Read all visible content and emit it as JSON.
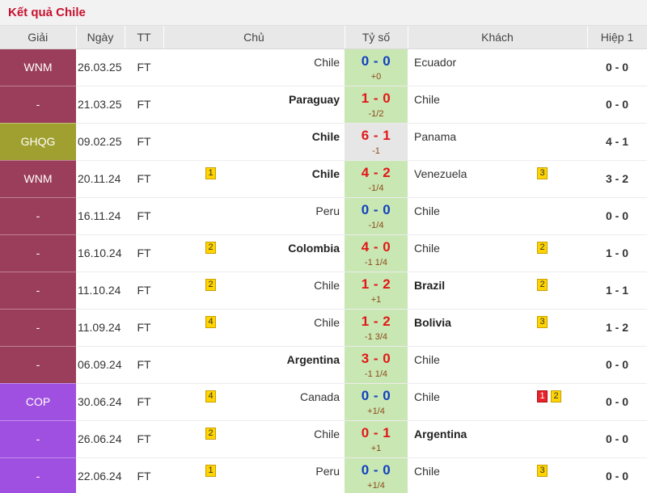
{
  "title": "Kết quả Chile",
  "headers": {
    "league": "Giải",
    "date": "Ngày",
    "status": "TT",
    "home": "Chủ",
    "score": "Tỷ số",
    "away": "Khách",
    "halftime": "Hiệp 1"
  },
  "colors": {
    "wnm": "#9b3e5c",
    "ghqg": "#a0a030",
    "cop": "#a050e0",
    "score_bg": "#c9e7b3",
    "yellow_card": "#ffd400",
    "red_card": "#e8242a"
  },
  "rows": [
    {
      "league": "WNM",
      "league_color": "#9b3e5c",
      "date": "26.03.25",
      "status": "FT",
      "home": "Chile",
      "home_bold": false,
      "home_card": "",
      "score": "0 - 0",
      "score_color": "blue",
      "score_bg": "green",
      "handicap": "+0",
      "away": "Ecuador",
      "away_bold": false,
      "away_card": "",
      "away_red_card": "",
      "halftime": "0 - 0"
    },
    {
      "league": "-",
      "league_color": "#9b3e5c",
      "date": "21.03.25",
      "status": "FT",
      "home": "Paraguay",
      "home_bold": true,
      "home_card": "",
      "score": "1 - 0",
      "score_color": "red",
      "score_bg": "green",
      "handicap": "-1/2",
      "away": "Chile",
      "away_bold": false,
      "away_card": "",
      "away_red_card": "",
      "halftime": "0 - 0"
    },
    {
      "league": "GHQG",
      "league_color": "#a0a030",
      "date": "09.02.25",
      "status": "FT",
      "home": "Chile",
      "home_bold": true,
      "home_card": "",
      "score": "6 - 1",
      "score_color": "red",
      "score_bg": "gray",
      "handicap": "-1",
      "away": "Panama",
      "away_bold": false,
      "away_card": "",
      "away_red_card": "",
      "halftime": "4 - 1"
    },
    {
      "league": "WNM",
      "league_color": "#9b3e5c",
      "date": "20.11.24",
      "status": "FT",
      "home": "Chile",
      "home_bold": true,
      "home_card": "1",
      "score": "4 - 2",
      "score_color": "red",
      "score_bg": "green",
      "handicap": "-1/4",
      "away": "Venezuela",
      "away_bold": false,
      "away_card": "3",
      "away_red_card": "",
      "halftime": "3 - 2"
    },
    {
      "league": "-",
      "league_color": "#9b3e5c",
      "date": "16.11.24",
      "status": "FT",
      "home": "Peru",
      "home_bold": false,
      "home_card": "",
      "score": "0 - 0",
      "score_color": "blue",
      "score_bg": "green",
      "handicap": "-1/4",
      "away": "Chile",
      "away_bold": false,
      "away_card": "",
      "away_red_card": "",
      "halftime": "0 - 0"
    },
    {
      "league": "-",
      "league_color": "#9b3e5c",
      "date": "16.10.24",
      "status": "FT",
      "home": "Colombia",
      "home_bold": true,
      "home_card": "2",
      "score": "4 - 0",
      "score_color": "red",
      "score_bg": "green",
      "handicap": "-1 1/4",
      "away": "Chile",
      "away_bold": false,
      "away_card": "2",
      "away_red_card": "",
      "halftime": "1 - 0"
    },
    {
      "league": "-",
      "league_color": "#9b3e5c",
      "date": "11.10.24",
      "status": "FT",
      "home": "Chile",
      "home_bold": false,
      "home_card": "2",
      "score": "1 - 2",
      "score_color": "red",
      "score_bg": "green",
      "handicap": "+1",
      "away": "Brazil",
      "away_bold": true,
      "away_card": "2",
      "away_red_card": "",
      "halftime": "1 - 1"
    },
    {
      "league": "-",
      "league_color": "#9b3e5c",
      "date": "11.09.24",
      "status": "FT",
      "home": "Chile",
      "home_bold": false,
      "home_card": "4",
      "score": "1 - 2",
      "score_color": "red",
      "score_bg": "green",
      "handicap": "-1 3/4",
      "away": "Bolivia",
      "away_bold": true,
      "away_card": "3",
      "away_red_card": "",
      "halftime": "1 - 2"
    },
    {
      "league": "-",
      "league_color": "#9b3e5c",
      "date": "06.09.24",
      "status": "FT",
      "home": "Argentina",
      "home_bold": true,
      "home_card": "",
      "score": "3 - 0",
      "score_color": "red",
      "score_bg": "green",
      "handicap": "-1 1/4",
      "away": "Chile",
      "away_bold": false,
      "away_card": "",
      "away_red_card": "",
      "halftime": "0 - 0"
    },
    {
      "league": "COP",
      "league_color": "#a050e0",
      "date": "30.06.24",
      "status": "FT",
      "home": "Canada",
      "home_bold": false,
      "home_card": "4",
      "score": "0 - 0",
      "score_color": "blue",
      "score_bg": "green",
      "handicap": "+1/4",
      "away": "Chile",
      "away_bold": false,
      "away_card": "2",
      "away_red_card": "1",
      "halftime": "0 - 0"
    },
    {
      "league": "-",
      "league_color": "#a050e0",
      "date": "26.06.24",
      "status": "FT",
      "home": "Chile",
      "home_bold": false,
      "home_card": "2",
      "score": "0 - 1",
      "score_color": "red",
      "score_bg": "green",
      "handicap": "+1",
      "away": "Argentina",
      "away_bold": true,
      "away_card": "",
      "away_red_card": "",
      "halftime": "0 - 0"
    },
    {
      "league": "-",
      "league_color": "#a050e0",
      "date": "22.06.24",
      "status": "FT",
      "home": "Peru",
      "home_bold": false,
      "home_card": "1",
      "score": "0 - 0",
      "score_color": "blue",
      "score_bg": "green",
      "handicap": "+1/4",
      "away": "Chile",
      "away_bold": false,
      "away_card": "3",
      "away_red_card": "",
      "halftime": "0 - 0"
    }
  ]
}
